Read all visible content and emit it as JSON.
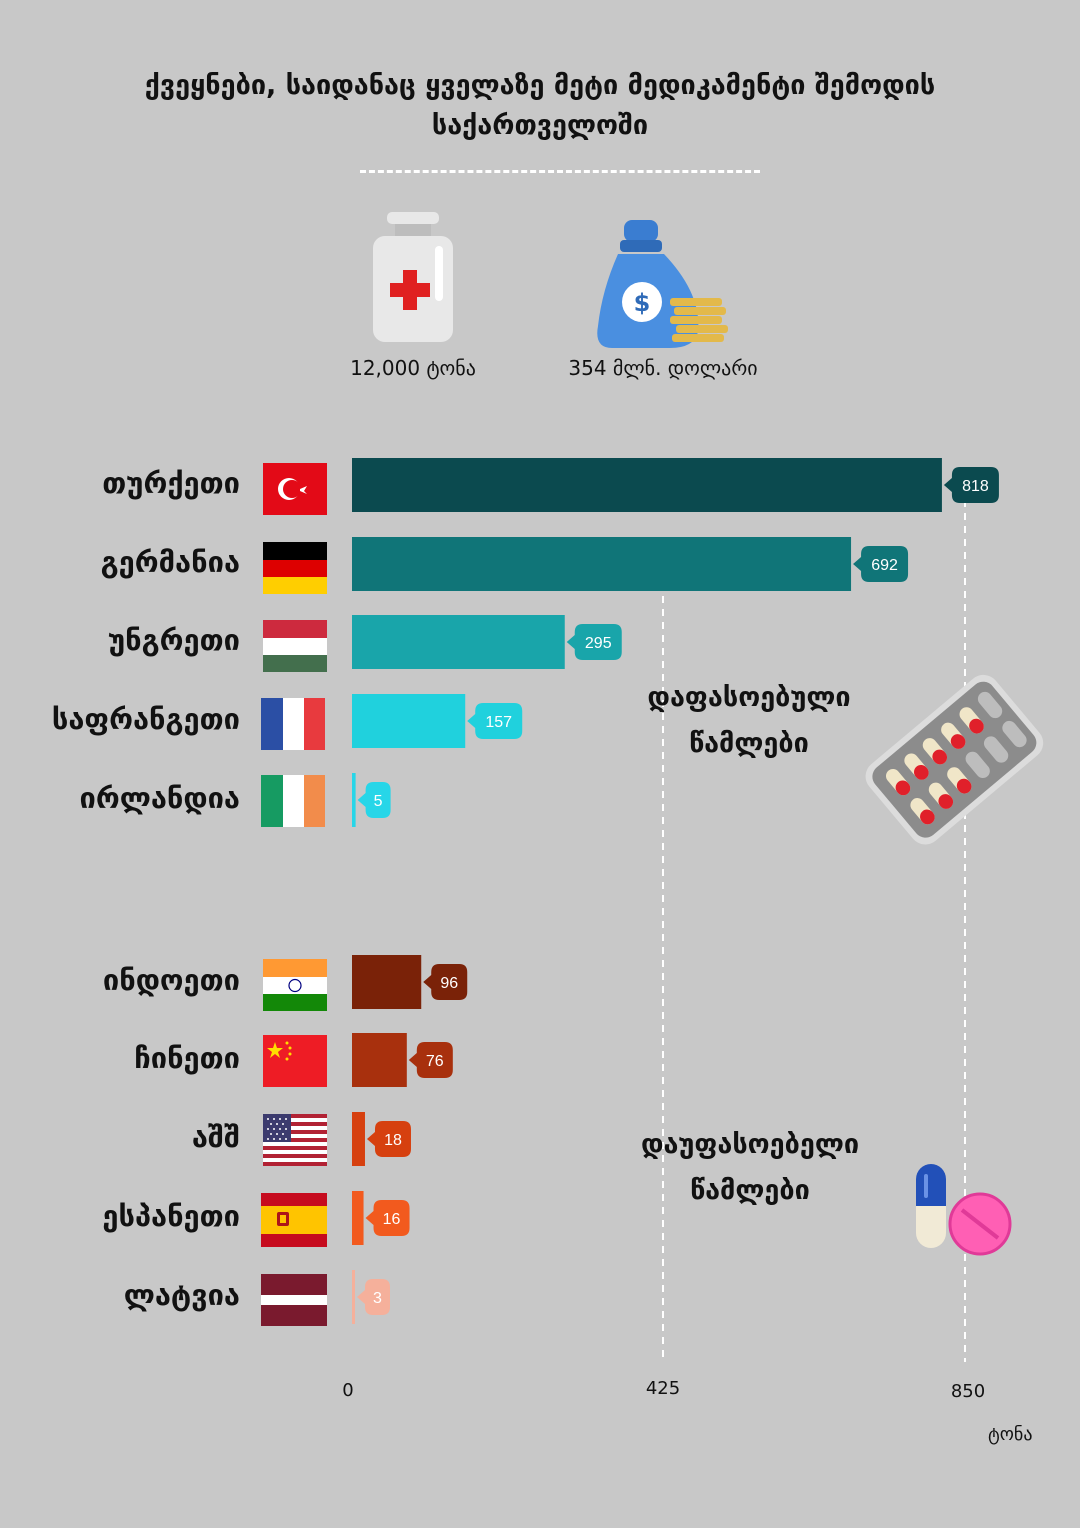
{
  "title_lines": [
    "ქვეყნები, საიდანაც ყველაზე მეტი მედიკამენტი შემოდის",
    "საქართველოში"
  ],
  "stats": [
    {
      "label": "12,000 ტონა",
      "icon": "medicine-bottle-icon"
    },
    {
      "label": "354 მლნ. დოლარი",
      "icon": "money-bag-icon"
    }
  ],
  "groups": [
    {
      "label_lines": [
        "დაფასოებული",
        "წამლები"
      ],
      "icon": "blister-pack-icon"
    },
    {
      "label_lines": [
        "დაუფასოებელი",
        "წამლები"
      ],
      "icon": "pills-icon"
    }
  ],
  "chart_data": {
    "type": "bar",
    "orientation": "horizontal",
    "unit_label": "ტონა",
    "xlim": [
      0,
      850
    ],
    "xticks": [
      "0",
      "425",
      "850"
    ],
    "grid": "dashed vertical lines at 425 and 850",
    "categories": [
      "თურქეთი",
      "გერმანია",
      "უნგრეთი",
      "საფრანგეთი",
      "ირლანდია",
      "ინდოეთი",
      "ჩინეთი",
      "აშშ",
      "ესპანეთი",
      "ლატვია"
    ],
    "values": [
      818,
      692,
      295,
      157,
      5,
      96,
      76,
      18,
      16,
      3
    ],
    "value_labels": [
      "818",
      "692",
      "295",
      "157",
      "5",
      "96",
      "76",
      "18",
      "16",
      "3"
    ],
    "group_of_category": [
      0,
      0,
      0,
      0,
      0,
      1,
      1,
      1,
      1,
      1
    ],
    "colors": [
      "#0b4a4f",
      "#107578",
      "#19a5aa",
      "#20d1dd",
      "#27d6e8",
      "#7a2208",
      "#a8300d",
      "#d6400f",
      "#f25a1e",
      "#f5b09b"
    ],
    "flags": [
      "turkey-flag",
      "germany-flag",
      "hungary-flag",
      "france-flag",
      "ireland-flag",
      "india-flag",
      "china-flag",
      "usa-flag",
      "spain-flag",
      "latvia-flag"
    ]
  }
}
